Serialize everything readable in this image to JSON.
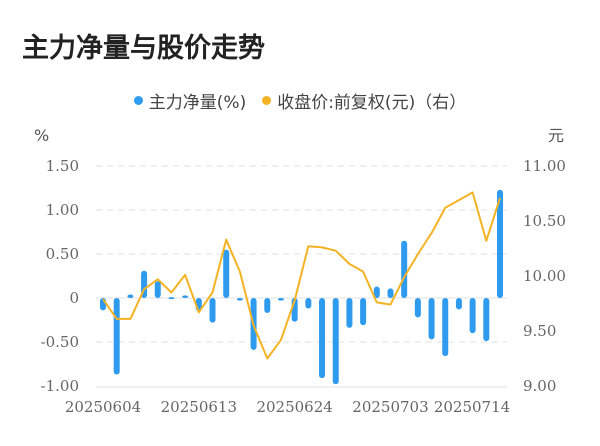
{
  "title": "主力净量与股价走势",
  "legend": [
    {
      "label": "主力净量(%)",
      "color": "#2f9bef"
    },
    {
      "label": "收盘价:前复权(元)（右）",
      "color": "#f5b324"
    }
  ],
  "axes": {
    "left_unit": "%",
    "right_unit": "元",
    "left_ticks": [
      "1.50",
      "1.00",
      "0.50",
      "0",
      "-0.50",
      "-1.00"
    ],
    "right_ticks": [
      "11.00",
      "10.50",
      "10.00",
      "9.50",
      "9.00"
    ],
    "x_labels": [
      "20250604",
      "20250613",
      "20250624",
      "20250703",
      "20250714"
    ]
  },
  "chart_data": {
    "type": "bar+line",
    "title": "主力净量与股价走势",
    "xlabel": "",
    "ylabel": "%",
    "ylabel_right": "元",
    "ylim": [
      -1.0,
      1.5
    ],
    "ylim_right": [
      9.0,
      11.0
    ],
    "grid": true,
    "legend_position": "top",
    "x_tick_labels": [
      "20250604",
      "20250613",
      "20250624",
      "20250703",
      "20250714"
    ],
    "x_tick_label_indices": [
      0,
      7,
      14,
      21,
      28
    ],
    "series": [
      {
        "name": "主力净量(%)",
        "type": "bar",
        "axis": "left",
        "color": "#2f9bef",
        "values": [
          -0.14,
          -0.87,
          0.04,
          0.31,
          0.19,
          0.01,
          0.03,
          -0.15,
          -0.28,
          0.55,
          -0.03,
          -0.59,
          -0.17,
          -0.03,
          -0.27,
          -0.12,
          -0.91,
          -0.98,
          -0.34,
          -0.31,
          0.13,
          0.11,
          0.65,
          -0.22,
          -0.47,
          -0.66,
          -0.13,
          -0.4,
          -0.49,
          1.23
        ]
      },
      {
        "name": "收盘价:前复权(元)（右）",
        "type": "line",
        "axis": "right",
        "color": "#f5b324",
        "values": [
          9.79,
          9.61,
          9.61,
          9.88,
          9.97,
          9.85,
          10.01,
          9.67,
          9.85,
          10.33,
          10.04,
          9.55,
          9.25,
          9.42,
          9.78,
          10.27,
          10.26,
          10.23,
          10.11,
          10.04,
          9.76,
          9.74,
          9.99,
          10.2,
          10.39,
          10.62,
          10.69,
          10.76,
          10.32,
          10.71
        ]
      }
    ]
  }
}
